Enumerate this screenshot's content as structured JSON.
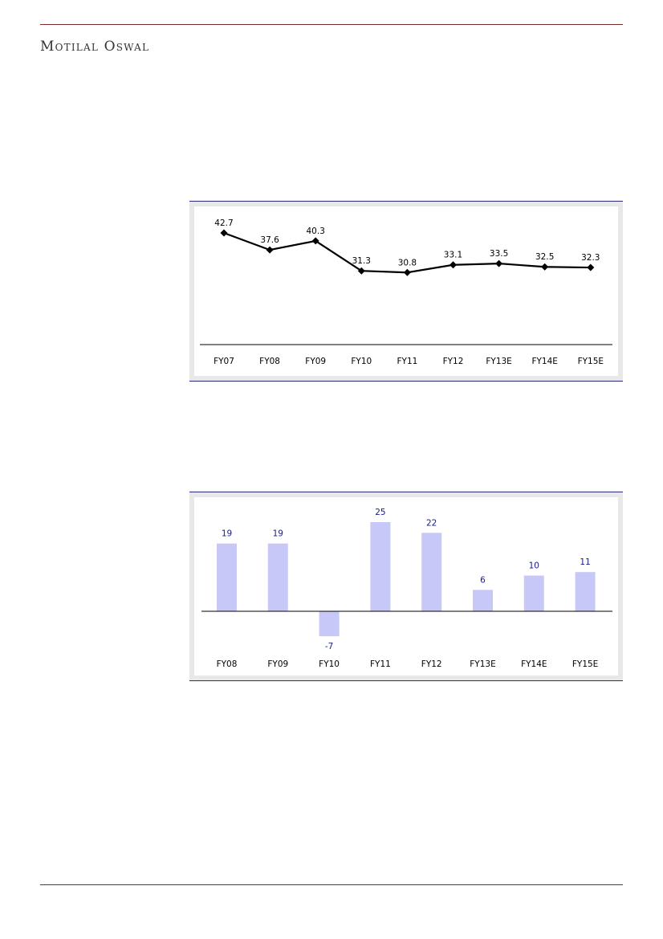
{
  "header": {
    "brand": "Motilal Oswal"
  },
  "colors": {
    "rule": "#7a2a2a",
    "chart_border": "#2a2a7a",
    "line": "#000000",
    "bar": "#c8c8f8",
    "bar_label": "#1a1a8a"
  },
  "chart_data": [
    {
      "type": "line",
      "categories": [
        "FY07",
        "FY08",
        "FY09",
        "FY10",
        "FY11",
        "FY12",
        "FY13E",
        "FY14E",
        "FY15E"
      ],
      "values": [
        42.7,
        37.6,
        40.3,
        31.3,
        30.8,
        33.1,
        33.5,
        32.5,
        32.3
      ],
      "data_labels": [
        "42.7",
        "37.6",
        "40.3",
        "31.3",
        "30.8",
        "33.1",
        "33.5",
        "32.5",
        "32.3"
      ],
      "marker": "diamond",
      "grid": false,
      "legend": "none"
    },
    {
      "type": "bar",
      "categories": [
        "FY08",
        "FY09",
        "FY10",
        "FY11",
        "FY12",
        "FY13E",
        "FY14E",
        "FY15E"
      ],
      "values": [
        19,
        19,
        -7,
        25,
        22,
        6,
        10,
        11
      ],
      "data_labels": [
        "19",
        "19",
        "-7",
        "25",
        "22",
        "6",
        "10",
        "11"
      ],
      "grid": false,
      "legend": "none"
    }
  ]
}
